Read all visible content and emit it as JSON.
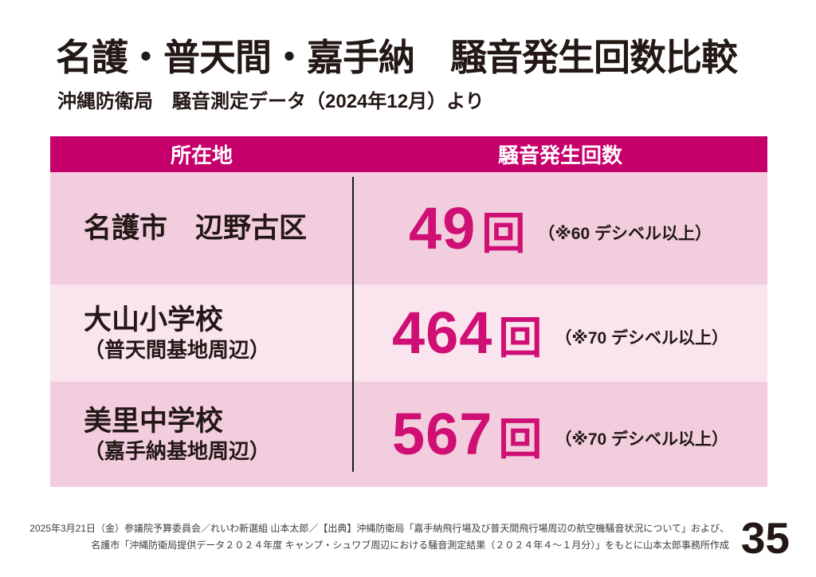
{
  "slide": {
    "title": "名護・普天間・嘉手納　騒音発生回数比較",
    "subtitle": "沖縄防衛局　騒音測定データ（2024年12月）より",
    "page_number": "35",
    "footer_line1": "2025年3月21日（金）参議院予算委員会／れいわ新選組 山本太郎／【出典】沖縄防衛局「嘉手納飛行場及び普天間飛行場周辺の航空機騒音状況について」および、",
    "footer_line2": "名護市「沖縄防衛局提供データ２０２４年度 キャンプ・シュワブ周辺における騒音測定結果（２０２４年４～１月分）」をもとに山本太郎事務所作成"
  },
  "table": {
    "headers": {
      "location": "所在地",
      "count": "騒音発生回数"
    },
    "rows": [
      {
        "location": "名護市　辺野古区",
        "location_sub": "",
        "count": "49",
        "unit": "回",
        "note": "（※60 デシベル以上）"
      },
      {
        "location": "大山小学校",
        "location_sub": "（普天間基地周辺）",
        "count": "464",
        "unit": "回",
        "note": "（※70 デシベル以上）"
      },
      {
        "location": "美里中学校",
        "location_sub": "（嘉手納基地周辺）",
        "count": "567",
        "unit": "回",
        "note": "（※70 デシベル以上）"
      }
    ]
  },
  "colors": {
    "header_magenta": "#c6006b",
    "number_magenta": "#cf0f73",
    "row_pink": "#f1cdde",
    "row_pink_light": "#fae5ef",
    "text_black": "#231815"
  }
}
